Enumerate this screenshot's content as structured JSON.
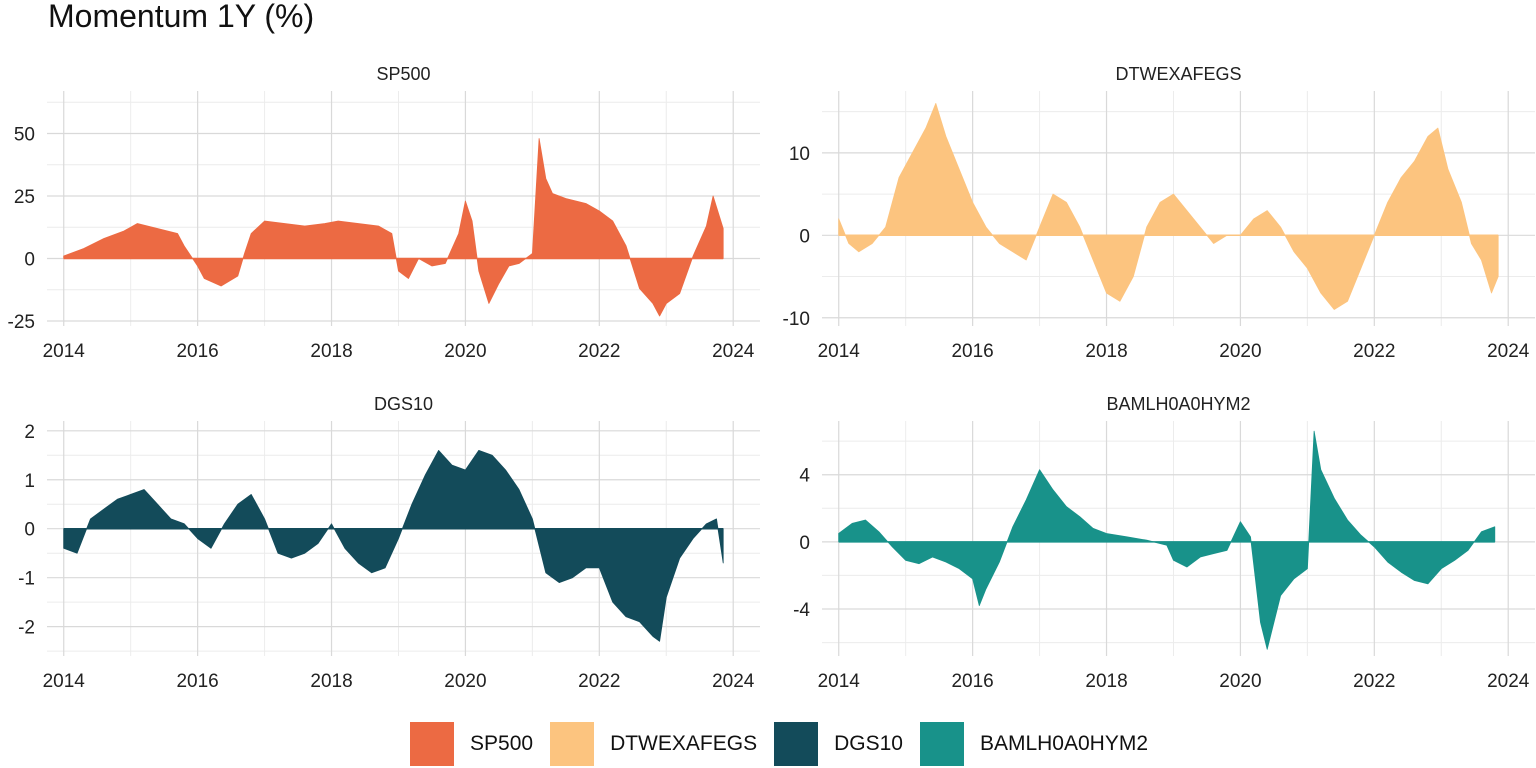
{
  "title": "Momentum 1Y (%)",
  "legend": {
    "items": [
      {
        "label": "SP500",
        "color": "#ec6a43"
      },
      {
        "label": "DTWEXAFEGS",
        "color": "#fcc47f"
      },
      {
        "label": "DGS10",
        "color": "#134b5a"
      },
      {
        "label": "BAMLH0A0HYM2",
        "color": "#18928a"
      }
    ]
  },
  "chart_data": [
    {
      "type": "area",
      "title": "SP500",
      "color": "#ec6a43",
      "xlim": [
        2013.75,
        2024.4
      ],
      "ylim": [
        -27,
        67
      ],
      "xticks": [
        2014,
        2016,
        2018,
        2020,
        2022,
        2024
      ],
      "yticks": [
        -25,
        0,
        25,
        50
      ],
      "grid": true,
      "x": [
        2014.0,
        2014.3,
        2014.6,
        2014.9,
        2015.1,
        2015.4,
        2015.7,
        2015.8,
        2016.0,
        2016.1,
        2016.35,
        2016.6,
        2016.7,
        2016.8,
        2017.0,
        2017.3,
        2017.6,
        2017.9,
        2018.1,
        2018.4,
        2018.7,
        2018.9,
        2019.0,
        2019.15,
        2019.3,
        2019.5,
        2019.7,
        2019.9,
        2020.0,
        2020.1,
        2020.2,
        2020.35,
        2020.5,
        2020.65,
        2020.8,
        2021.0,
        2021.1,
        2021.2,
        2021.3,
        2021.5,
        2021.8,
        2022.0,
        2022.2,
        2022.4,
        2022.6,
        2022.8,
        2022.9,
        2023.0,
        2023.2,
        2023.4,
        2023.6,
        2023.7,
        2023.85
      ],
      "y": [
        1,
        4,
        8,
        11,
        14,
        12,
        10,
        5,
        -3,
        -8,
        -11,
        -7,
        2,
        10,
        15,
        14,
        13,
        14,
        15,
        14,
        13,
        10,
        -5,
        -8,
        0,
        -3,
        -2,
        10,
        23,
        15,
        -5,
        -18,
        -10,
        -3,
        -2,
        2,
        48,
        32,
        26,
        24,
        22,
        19,
        15,
        5,
        -12,
        -18,
        -23,
        -18,
        -14,
        1,
        13,
        25,
        12
      ]
    },
    {
      "type": "area",
      "title": "DTWEXAFEGS",
      "color": "#fcc47f",
      "xlim": [
        2013.75,
        2024.4
      ],
      "ylim": [
        -11,
        17.5
      ],
      "xticks": [
        2014,
        2016,
        2018,
        2020,
        2022,
        2024
      ],
      "yticks": [
        -10,
        0,
        10
      ],
      "grid": true,
      "x": [
        2014.0,
        2014.15,
        2014.3,
        2014.5,
        2014.7,
        2014.9,
        2015.1,
        2015.3,
        2015.45,
        2015.6,
        2015.8,
        2016.0,
        2016.2,
        2016.4,
        2016.6,
        2016.8,
        2017.0,
        2017.2,
        2017.4,
        2017.6,
        2017.8,
        2018.0,
        2018.2,
        2018.4,
        2018.6,
        2018.8,
        2019.0,
        2019.2,
        2019.4,
        2019.6,
        2019.8,
        2020.0,
        2020.2,
        2020.4,
        2020.6,
        2020.8,
        2021.0,
        2021.2,
        2021.4,
        2021.6,
        2021.8,
        2022.0,
        2022.2,
        2022.4,
        2022.6,
        2022.8,
        2022.95,
        2023.1,
        2023.3,
        2023.45,
        2023.6,
        2023.75,
        2023.85
      ],
      "y": [
        2,
        -1,
        -2,
        -1,
        1,
        7,
        10,
        13,
        16,
        12,
        8,
        4,
        1,
        -1,
        -2,
        -3,
        1,
        5,
        4,
        1,
        -3,
        -7,
        -8,
        -5,
        1,
        4,
        5,
        3,
        1,
        -1,
        0,
        0,
        2,
        3,
        1,
        -2,
        -4,
        -7,
        -9,
        -8,
        -4,
        0,
        4,
        7,
        9,
        12,
        13,
        8,
        4,
        -1,
        -3,
        -7,
        -5
      ]
    },
    {
      "type": "area",
      "title": "DGS10",
      "color": "#134b5a",
      "xlim": [
        2013.75,
        2024.4
      ],
      "ylim": [
        -2.6,
        2.2
      ],
      "xticks": [
        2014,
        2016,
        2018,
        2020,
        2022,
        2024
      ],
      "yticks": [
        -2,
        -1,
        0,
        1,
        2
      ],
      "grid": true,
      "x": [
        2014.0,
        2014.2,
        2014.4,
        2014.6,
        2014.8,
        2015.0,
        2015.2,
        2015.4,
        2015.6,
        2015.8,
        2016.0,
        2016.2,
        2016.4,
        2016.6,
        2016.8,
        2017.0,
        2017.2,
        2017.4,
        2017.6,
        2017.8,
        2018.0,
        2018.2,
        2018.4,
        2018.6,
        2018.8,
        2019.0,
        2019.2,
        2019.4,
        2019.6,
        2019.8,
        2020.0,
        2020.2,
        2020.4,
        2020.6,
        2020.8,
        2021.0,
        2021.2,
        2021.4,
        2021.6,
        2021.8,
        2022.0,
        2022.2,
        2022.4,
        2022.6,
        2022.8,
        2022.9,
        2023.0,
        2023.2,
        2023.4,
        2023.6,
        2023.75,
        2023.85
      ],
      "y": [
        -0.4,
        -0.5,
        0.2,
        0.4,
        0.6,
        0.7,
        0.8,
        0.5,
        0.2,
        0.1,
        -0.2,
        -0.4,
        0.1,
        0.5,
        0.7,
        0.2,
        -0.5,
        -0.6,
        -0.5,
        -0.3,
        0.1,
        -0.4,
        -0.7,
        -0.9,
        -0.8,
        -0.2,
        0.5,
        1.1,
        1.6,
        1.3,
        1.2,
        1.6,
        1.5,
        1.2,
        0.8,
        0.2,
        -0.9,
        -1.1,
        -1.0,
        -0.8,
        -0.8,
        -1.5,
        -1.8,
        -1.9,
        -2.2,
        -2.3,
        -1.4,
        -0.6,
        -0.2,
        0.1,
        0.2,
        -0.7
      ]
    },
    {
      "type": "area",
      "title": "BAMLH0A0HYM2",
      "color": "#18928a",
      "xlim": [
        2013.75,
        2024.4
      ],
      "ylim": [
        -6.8,
        7.2
      ],
      "xticks": [
        2014,
        2016,
        2018,
        2020,
        2022,
        2024
      ],
      "yticks": [
        -4,
        0,
        4
      ],
      "grid": true,
      "x": [
        2014.0,
        2014.2,
        2014.4,
        2014.6,
        2014.8,
        2015.0,
        2015.2,
        2015.4,
        2015.6,
        2015.8,
        2016.0,
        2016.1,
        2016.2,
        2016.4,
        2016.6,
        2016.8,
        2017.0,
        2017.2,
        2017.4,
        2017.6,
        2017.8,
        2018.0,
        2018.3,
        2018.6,
        2018.9,
        2019.0,
        2019.2,
        2019.4,
        2019.6,
        2019.8,
        2020.0,
        2020.15,
        2020.3,
        2020.4,
        2020.6,
        2020.8,
        2021.0,
        2021.1,
        2021.2,
        2021.4,
        2021.6,
        2021.8,
        2022.0,
        2022.2,
        2022.4,
        2022.6,
        2022.8,
        2023.0,
        2023.2,
        2023.4,
        2023.6,
        2023.8
      ],
      "y": [
        0.5,
        1.1,
        1.3,
        0.6,
        -0.3,
        -1.1,
        -1.3,
        -0.9,
        -1.2,
        -1.6,
        -2.2,
        -3.8,
        -2.8,
        -1.2,
        0.9,
        2.5,
        4.3,
        3.1,
        2.1,
        1.5,
        0.8,
        0.5,
        0.3,
        0.1,
        -0.2,
        -1.1,
        -1.5,
        -0.9,
        -0.7,
        -0.5,
        1.2,
        0.3,
        -4.8,
        -6.4,
        -3.2,
        -2.2,
        -1.6,
        6.6,
        4.3,
        2.6,
        1.3,
        0.4,
        -0.3,
        -1.2,
        -1.8,
        -2.3,
        -2.5,
        -1.6,
        -1.1,
        -0.5,
        0.6,
        0.9
      ]
    }
  ]
}
